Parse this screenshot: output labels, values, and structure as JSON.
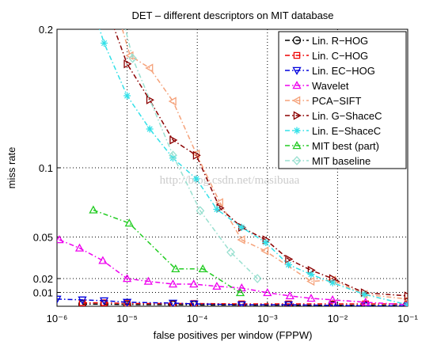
{
  "chart_data": {
    "type": "line",
    "title": "DET – different descriptors on MIT database",
    "xlabel": "false positives per window (FPPW)",
    "ylabel": "miss rate",
    "annotation": "http://blog.csdn.net/masibuaa",
    "xscale": "log",
    "grid": true,
    "legend": "upper right",
    "xlim": [
      1e-06,
      0.1
    ],
    "ylim": [
      0,
      0.2
    ],
    "xticks": [
      {
        "value": 1e-06,
        "label": "10⁻⁶"
      },
      {
        "value": 1e-05,
        "label": "10⁻⁵"
      },
      {
        "value": 0.0001,
        "label": "10⁻⁴"
      },
      {
        "value": 0.001,
        "label": "10⁻³"
      },
      {
        "value": 0.01,
        "label": "10⁻²"
      },
      {
        "value": 0.1,
        "label": "10⁻¹"
      }
    ],
    "yticks": [
      0.01,
      0.02,
      0.05,
      0.1,
      0.2
    ],
    "series": [
      {
        "name": "Lin. R−HOG",
        "color": "#000000",
        "marker": "circle",
        "x": [
          2.3e-06,
          4.7e-06,
          1e-05,
          4.5e-05,
          9e-05,
          0.00043,
          0.002,
          0.0085,
          0.025,
          0.1
        ],
        "values": [
          0.0015,
          0.0015,
          0.0012,
          0.0011,
          0.001,
          0.0009,
          0.0008,
          0.0007,
          0.0006,
          0.0005
        ]
      },
      {
        "name": "Lin. C−HOG",
        "color": "#ee0000",
        "marker": "square",
        "x": [
          2.3e-06,
          4.7e-06,
          1e-05,
          4.5e-05,
          9e-05,
          0.00043,
          0.002,
          0.0085,
          0.025,
          0.1
        ],
        "values": [
          0.0025,
          0.0025,
          0.002,
          0.002,
          0.002,
          0.0017,
          0.0017,
          0.0017,
          0.0017,
          0.0017
        ]
      },
      {
        "name": "Lin. EC−HOG",
        "color": "#0000dd",
        "marker": "triangle-down",
        "x": [
          1e-06,
          2.3e-06,
          4.7e-06,
          1e-05,
          4.5e-05,
          9e-05,
          0.00043,
          0.002,
          0.0085,
          0.025,
          0.1
        ],
        "values": [
          0.0052,
          0.0046,
          0.004,
          0.0029,
          0.0023,
          0.0017,
          0.0011,
          0.0011,
          0.0006,
          0.0003,
          0.0003
        ]
      },
      {
        "name": "Wavelet",
        "color": "#ee00ee",
        "marker": "triangle-up",
        "x": [
          1.08e-06,
          2.1e-06,
          4.5e-06,
          1e-05,
          2e-05,
          4.5e-05,
          8.9e-05,
          0.00019,
          0.00043,
          0.001,
          0.0021,
          0.0042,
          0.0085,
          0.025,
          0.1
        ],
        "values": [
          0.048,
          0.042,
          0.033,
          0.02,
          0.018,
          0.016,
          0.016,
          0.0144,
          0.0132,
          0.0098,
          0.0075,
          0.0057,
          0.0046,
          0.0029,
          0.0011
        ]
      },
      {
        "name": "PCA−SIFT",
        "color": "#f5a27a",
        "marker": "triangle-left",
        "x": [
          7e-06,
          1.1e-05,
          2.1e-05,
          4.5e-05,
          9.7e-05,
          0.00021,
          0.00043,
          0.00093,
          0.0042,
          0.0085,
          0.024,
          0.1
        ],
        "values": [
          0.215,
          0.181,
          0.172,
          0.148,
          0.11,
          0.075,
          0.048,
          0.04,
          0.018,
          0.019,
          0.0086,
          0.0052
        ]
      },
      {
        "name": "Lin. G−ShaceC",
        "color": "#8b0000",
        "marker": "triangle-right",
        "x": [
          5.6e-06,
          1e-05,
          2.1e-05,
          4.5e-05,
          9.7e-05,
          0.00021,
          0.00043,
          0.00095,
          0.002,
          0.0042,
          0.0085,
          0.024,
          0.1
        ],
        "values": [
          0.21,
          0.175,
          0.149,
          0.12,
          0.109,
          0.071,
          0.057,
          0.048,
          0.034,
          0.026,
          0.02,
          0.0098,
          0.0075
        ]
      },
      {
        "name": "Lin. E−ShaceC",
        "color": "#33e0e8",
        "marker": "star",
        "x": [
          3.5e-06,
          4.7e-06,
          1e-05,
          2.1e-05,
          4.5e-05,
          9.7e-05,
          0.00019,
          0.00043,
          0.00095,
          0.002,
          0.0042,
          0.0085,
          0.024,
          0.1
        ],
        "values": [
          0.21,
          0.19,
          0.152,
          0.128,
          0.107,
          0.092,
          0.07,
          0.057,
          0.046,
          0.03,
          0.023,
          0.017,
          0.0086,
          0.0011
        ]
      },
      {
        "name": "MIT best (part)",
        "color": "#22cc22",
        "marker": "triangle-up",
        "x": [
          3.3e-06,
          1.07e-05,
          4.9e-05,
          0.00012,
          0.00041
        ],
        "values": [
          0.0695,
          0.06,
          0.027,
          0.027,
          0.0098
        ]
      },
      {
        "name": "MIT baseline",
        "color": "#99e0d0",
        "marker": "diamond",
        "x": [
          7.6e-06,
          1.2e-05,
          4.5e-05,
          0.00011,
          0.0003,
          0.00072
        ],
        "values": [
          0.22,
          0.179,
          0.109,
          0.069,
          0.039,
          0.02
        ]
      }
    ]
  }
}
